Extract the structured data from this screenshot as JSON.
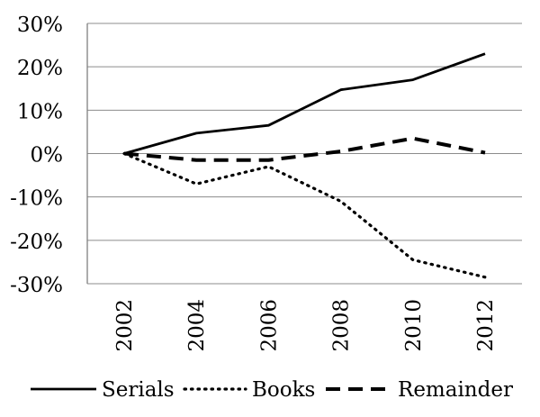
{
  "chart_data": {
    "type": "line",
    "title": "",
    "xlabel": "",
    "ylabel": "",
    "x": [
      "2002",
      "2004",
      "2006",
      "2008",
      "2010",
      "2012"
    ],
    "ylim": [
      -30,
      30
    ],
    "yticks": [
      30,
      20,
      10,
      0,
      -10,
      -20,
      -30
    ],
    "ytick_labels": [
      "30%",
      "20%",
      "10%",
      "0%",
      "-10%",
      "-20%",
      "-30%"
    ],
    "grid": true,
    "legend_position": "bottom",
    "series": [
      {
        "name": "Serials",
        "style": "solid",
        "values": [
          0,
          4.7,
          6.5,
          14.7,
          17.0,
          23.0
        ]
      },
      {
        "name": "Books",
        "style": "dotted",
        "values": [
          0,
          -7.0,
          -3.0,
          -11.0,
          -24.5,
          -28.5
        ]
      },
      {
        "name": "Remainder",
        "style": "dashed",
        "values": [
          0,
          -1.5,
          -1.5,
          0.5,
          3.5,
          0.2
        ]
      }
    ],
    "colors": {
      "line": "#000000",
      "grid": "#8c8c8c",
      "axis": "#7f7f7f"
    }
  }
}
